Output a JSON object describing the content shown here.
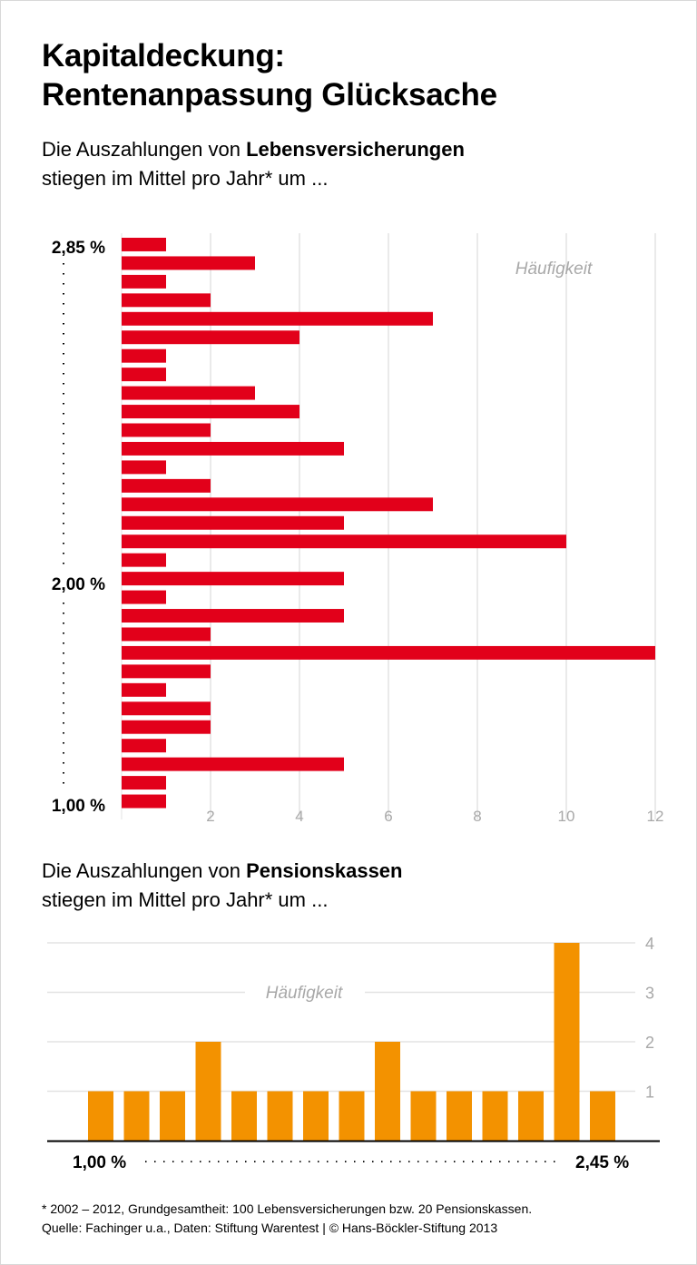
{
  "title_line1": "Kapitaldeckung:",
  "title_line2": "Rentenanpassung Glücksache",
  "footnote_line1": "* 2002 – 2012, Grundgesamtheit: 100 Lebensversicherungen bzw. 20 Pensionskassen.",
  "footnote_line2": "Quelle: Fachinger u.a., Daten: Stiftung Warentest | © Hans-Böckler-Stiftung 2013",
  "chart_data": [
    {
      "type": "bar",
      "orientation": "horizontal",
      "subtitle_pre": "Die Auszahlungen von ",
      "subtitle_bold": "Lebensversicherungen",
      "subtitle_line2": "stiegen im Mittel pro Jahr* um ...",
      "value_axis_label": "Häufigkeit",
      "category_labels": {
        "top": "2,85 %",
        "middle": "2,00 %",
        "bottom": "1,00 %"
      },
      "values": [
        1,
        3,
        1,
        2,
        7,
        4,
        1,
        1,
        3,
        4,
        2,
        5,
        1,
        2,
        7,
        5,
        10,
        1,
        5,
        1,
        5,
        2,
        12,
        2,
        1,
        2,
        2,
        1,
        5,
        1,
        1
      ],
      "xlim": [
        0,
        12
      ],
      "xticks": [
        "2",
        "4",
        "6",
        "8",
        "10",
        "12"
      ],
      "grid": true,
      "color": "#e2001a"
    },
    {
      "type": "bar",
      "orientation": "vertical",
      "subtitle_pre": "Die Auszahlungen von ",
      "subtitle_bold": "Pensionskassen",
      "subtitle_line2": "stiegen im Mittel pro Jahr* um ...",
      "value_axis_label": "Häufigkeit",
      "category_labels": {
        "left": "1,00 %",
        "right": "2,45 %"
      },
      "values": [
        1,
        1,
        1,
        2,
        1,
        1,
        1,
        1,
        2,
        1,
        1,
        1,
        1,
        4,
        1
      ],
      "ylim": [
        0,
        4
      ],
      "yticks": [
        "1",
        "2",
        "3",
        "4"
      ],
      "grid": true,
      "color": "#f39200"
    }
  ]
}
